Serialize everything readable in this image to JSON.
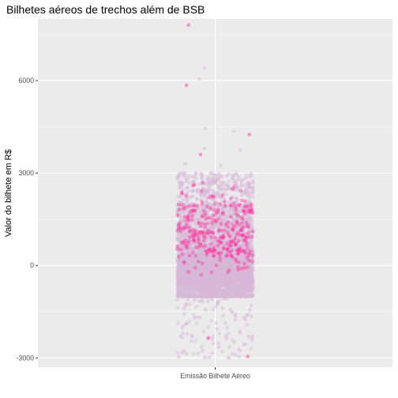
{
  "chart_data": {
    "type": "scatter",
    "title": "Bilhetes aéreos de trechos além de BSB",
    "xlabel": "",
    "ylabel": "Valor do bilhete em R$",
    "categories": [
      "Emissão Bilhete Aéreo"
    ],
    "y_ticks": [
      -3000,
      0,
      3000,
      6000
    ],
    "y_tick_labels": [
      "-3000",
      "0",
      "3000",
      "6000"
    ],
    "ylim": [
      -3300,
      8000
    ],
    "grid": true,
    "jitter": true,
    "colors": {
      "panel": "#ebebeb",
      "grid": "#ffffff",
      "point_light": "#d8b6d8",
      "point_bright": "#ff2e9a"
    },
    "series": [
      {
        "name": "",
        "distribution": {
          "dense_range": [
            -1000,
            2000
          ],
          "scattered_range": [
            -3000,
            3000
          ],
          "count_estimate": 6000
        },
        "outliers": [
          {
            "y": 7800
          },
          {
            "y": 6400
          },
          {
            "y": 6050
          },
          {
            "y": 5850
          },
          {
            "y": 4450
          },
          {
            "y": 4350
          },
          {
            "y": 4250
          },
          {
            "y": 3800
          },
          {
            "y": 3750
          },
          {
            "y": 3600
          },
          {
            "y": 3300
          },
          {
            "y": 3250
          },
          {
            "y": -2350
          },
          {
            "y": -2550
          },
          {
            "y": -2850
          },
          {
            "y": -2950
          }
        ]
      }
    ]
  }
}
